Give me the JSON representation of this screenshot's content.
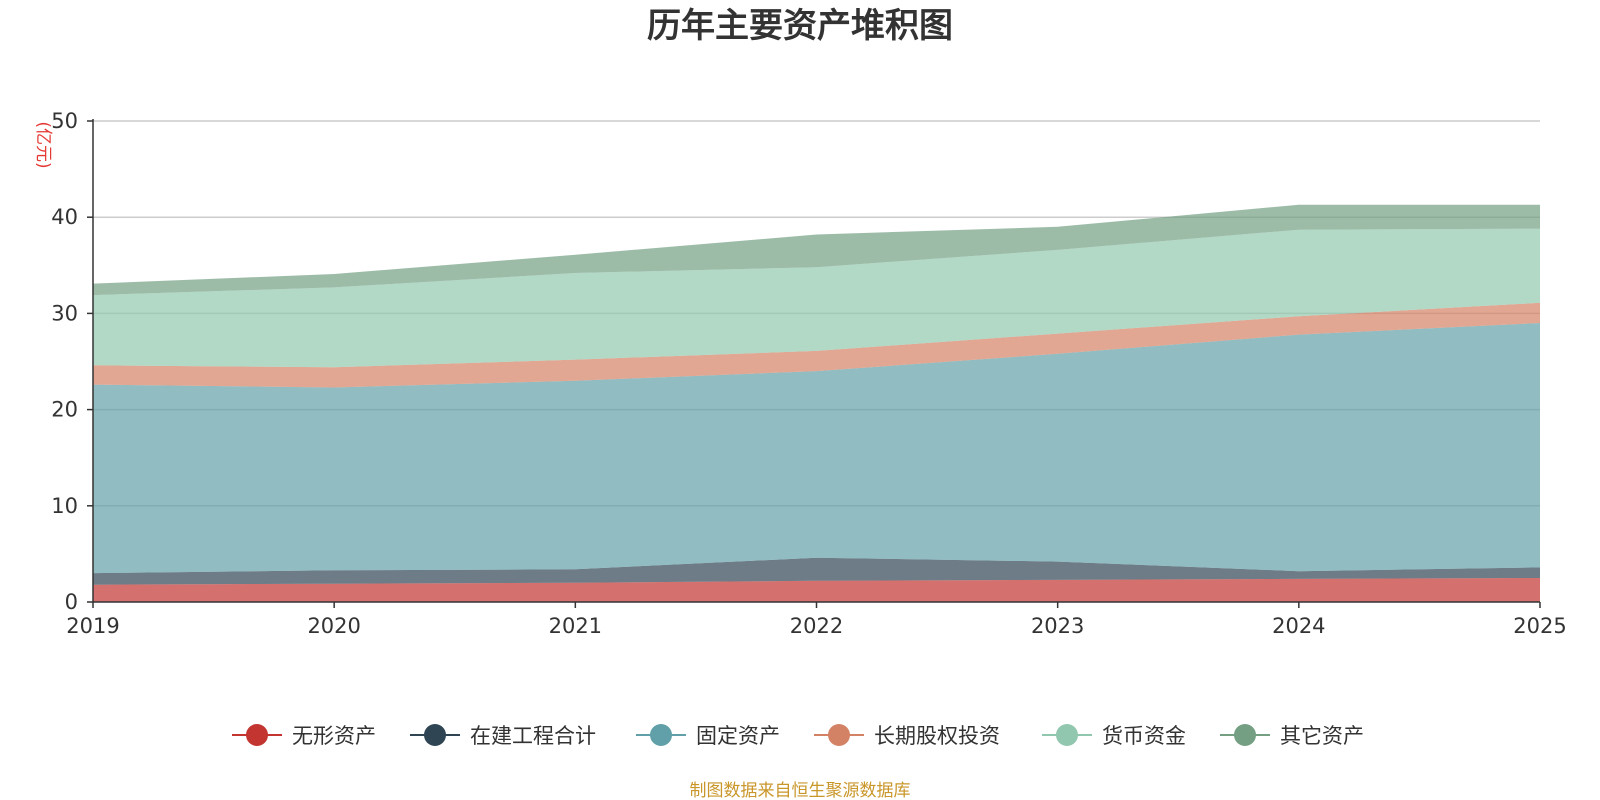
{
  "chart_data": {
    "type": "area",
    "stacked": true,
    "title": "历年主要资产堆积图",
    "ylabel": "(亿元)",
    "xlabel": "",
    "x": [
      "2019",
      "2020",
      "2021",
      "2022",
      "2023",
      "2024",
      "2025"
    ],
    "ylim": [
      0,
      50
    ],
    "yticks": [
      "0",
      "10",
      "20",
      "30",
      "40",
      "50"
    ],
    "grid": true,
    "legend_position": "bottom",
    "series": [
      {
        "name": "无形资产",
        "color": "#c23531",
        "values": [
          1.8,
          1.9,
          2.0,
          2.2,
          2.3,
          2.4,
          2.5
        ]
      },
      {
        "name": "在建工程合计",
        "color": "#2f4554",
        "values": [
          1.2,
          1.4,
          1.4,
          2.4,
          1.9,
          0.8,
          1.1
        ]
      },
      {
        "name": "固定资产",
        "color": "#61a0a8",
        "values": [
          19.6,
          19.0,
          19.6,
          19.4,
          21.6,
          24.6,
          25.4
        ]
      },
      {
        "name": "长期股权投资",
        "color": "#d48265",
        "values": [
          2.0,
          2.1,
          2.2,
          2.1,
          2.1,
          1.9,
          2.1
        ]
      },
      {
        "name": "货币资金",
        "color": "#91c7ae",
        "values": [
          7.3,
          8.3,
          9.0,
          8.7,
          8.7,
          9.0,
          7.7
        ]
      },
      {
        "name": "其它资产",
        "color": "#749f83",
        "values": [
          1.2,
          1.4,
          1.9,
          3.4,
          2.4,
          2.6,
          2.5
        ]
      }
    ]
  },
  "footer": {
    "source": "制图数据来自恒生聚源数据库"
  }
}
